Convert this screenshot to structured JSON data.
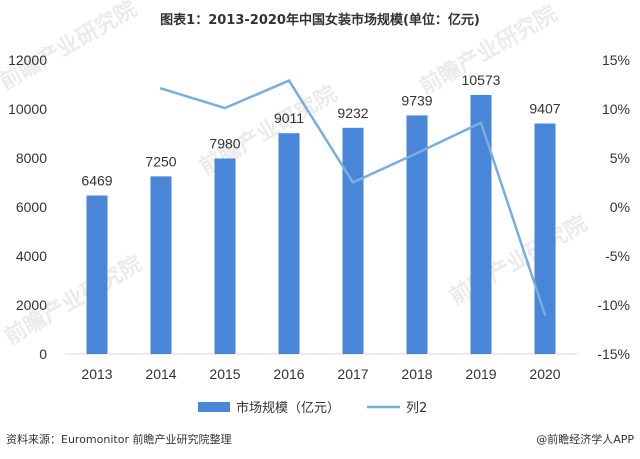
{
  "title": "图表1：2013-2020年中国女装市场规模(单位：亿元)",
  "source": "资料来源：Euromonitor 前瞻产业研究院整理",
  "brand": "@前瞻经济学人APP",
  "watermark": "前瞻产业研究院",
  "colors": {
    "bar": "#4a86d8",
    "line": "#7aaede",
    "text": "#333333"
  },
  "chart_data": {
    "type": "bar",
    "categories": [
      "2013",
      "2014",
      "2015",
      "2016",
      "2017",
      "2018",
      "2019",
      "2020"
    ],
    "series": [
      {
        "name": "市场规模（亿元）",
        "type": "bar",
        "axis": "left",
        "values": [
          6469,
          7250,
          7980,
          9011,
          9232,
          9739,
          10573,
          9407
        ]
      },
      {
        "name": "列2",
        "type": "line",
        "axis": "right",
        "values": [
          null,
          12.1,
          10.1,
          12.9,
          2.5,
          5.5,
          8.6,
          -11.0
        ]
      }
    ],
    "data_labels": [
      "6469",
      "7250",
      "7980",
      "9011",
      "9232",
      "9739",
      "10573",
      "9407"
    ],
    "ylim_left": [
      0,
      12000
    ],
    "yticks_left": [
      "0",
      "2000",
      "4000",
      "6000",
      "8000",
      "10000",
      "12000"
    ],
    "ylim_right": [
      -15,
      15
    ],
    "yticks_right": [
      "-15%",
      "-10%",
      "-5%",
      "0%",
      "5%",
      "10%",
      "15%"
    ],
    "grid": false,
    "legend_position": "bottom"
  }
}
